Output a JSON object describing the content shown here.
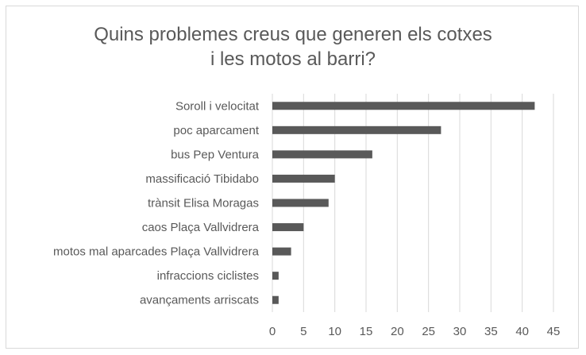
{
  "chart_data": {
    "type": "bar",
    "orientation": "horizontal",
    "title_lines": [
      "Quins problemes creus que generen els cotxes",
      "i les motos al barri?"
    ],
    "categories": [
      "Soroll i velocitat",
      "poc aparcament",
      "bus Pep Ventura",
      "massificació Tibidabo",
      "trànsit Elisa Moragas",
      "caos Plaça Vallvidrera",
      "motos mal aparcades Plaça Vallvidrera",
      "infraccions ciclistes",
      "avançaments arriscats"
    ],
    "values": [
      42,
      27,
      16,
      10,
      9,
      5,
      3,
      1,
      1
    ],
    "xlim": [
      0,
      45
    ],
    "xticks": [
      0,
      5,
      10,
      15,
      20,
      25,
      30,
      35,
      40,
      45
    ],
    "grid": "vertical",
    "legend": "none",
    "colors": {
      "bar": "#595959",
      "grid": "#d9d9d9",
      "text": "#595959"
    }
  }
}
